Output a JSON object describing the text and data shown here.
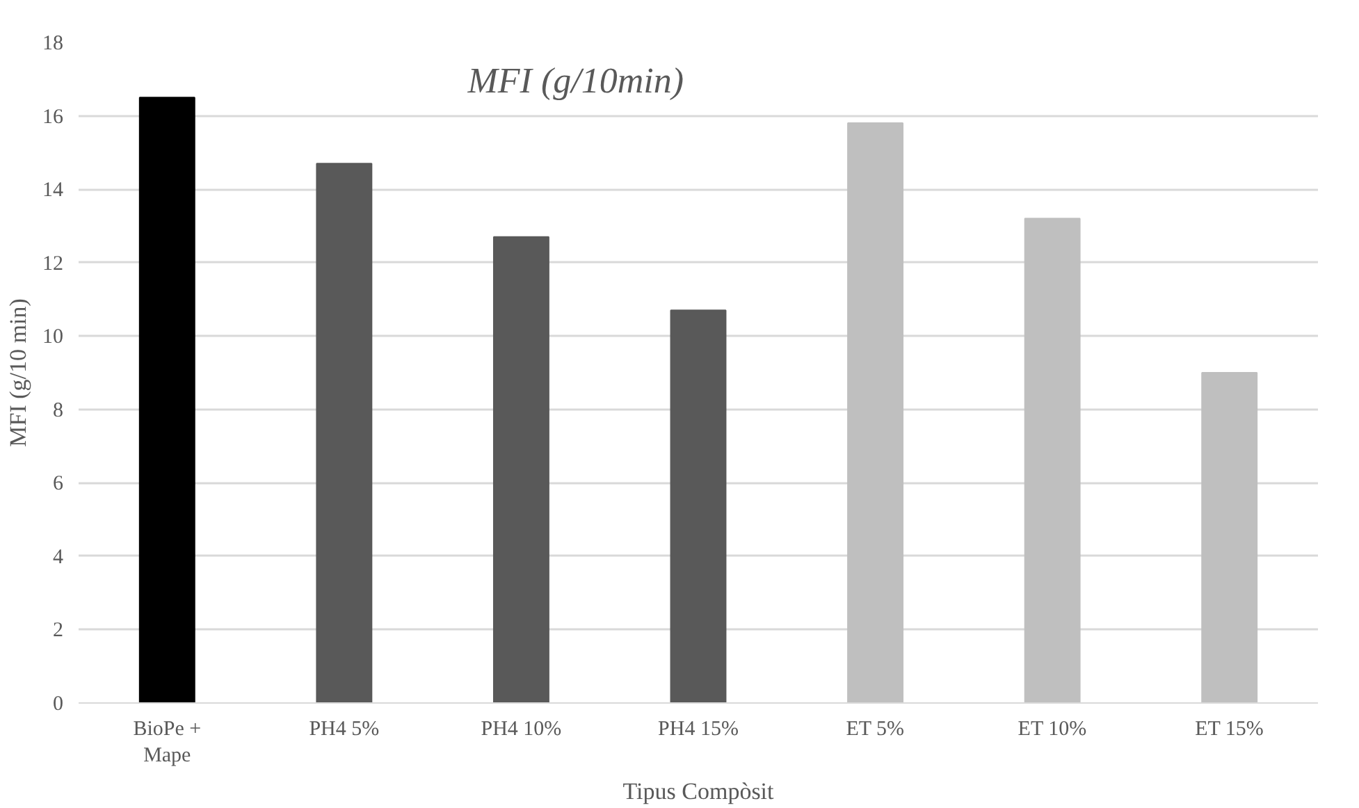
{
  "chart_data": {
    "type": "bar",
    "title": "MFI (g/10min)",
    "xlabel": "Tipus Compòsit",
    "ylabel": "MFI (g/10 min)",
    "categories": [
      "BioPe +\nMape",
      "PH4 5%",
      "PH4 10%",
      "PH4 15%",
      "ET 5%",
      "ET 10%",
      "ET 15%"
    ],
    "values": [
      16.5,
      14.7,
      12.7,
      10.7,
      15.8,
      13.2,
      9.0
    ],
    "colors": [
      "#000000",
      "#595959",
      "#595959",
      "#595959",
      "#bfbfbf",
      "#bfbfbf",
      "#bfbfbf"
    ],
    "ylim": [
      0,
      18
    ],
    "yticks": [
      0,
      2,
      4,
      6,
      8,
      10,
      12,
      14,
      16,
      18
    ],
    "grid": "y"
  }
}
